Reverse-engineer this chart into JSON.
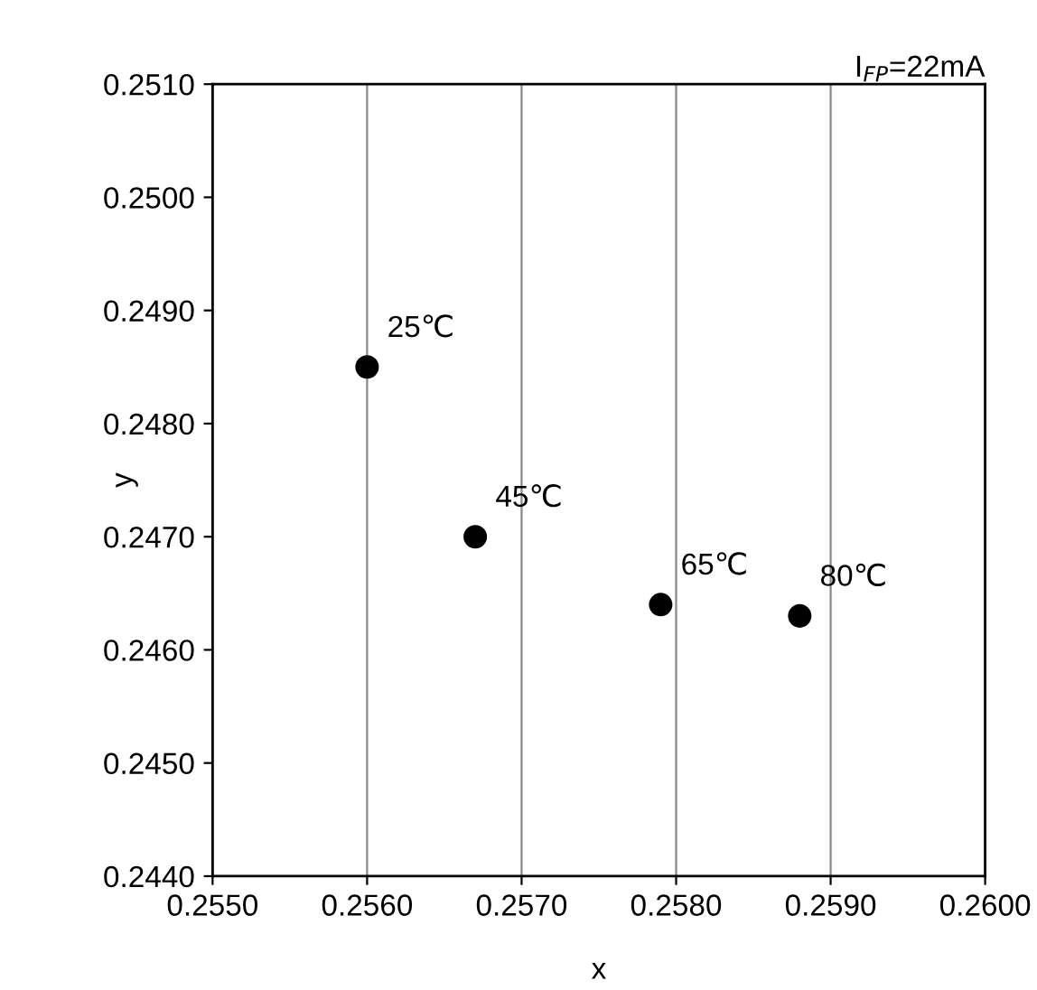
{
  "chart_data": {
    "type": "scatter",
    "title": "I$_{FP}$=22mA",
    "xlabel": "x",
    "ylabel": "y",
    "x": [
      0.256,
      0.2567,
      0.2579,
      0.2588
    ],
    "values": [
      0.2485,
      0.247,
      0.2464,
      0.2463
    ],
    "color": "#000000",
    "marker": "circle",
    "xlim": [
      0.255,
      0.26
    ],
    "xticks": [
      {
        "value": 0.255,
        "label": "0.2550"
      },
      {
        "value": 0.256,
        "label": "0.2560"
      },
      {
        "value": 0.257,
        "label": "0.2570"
      },
      {
        "value": 0.258,
        "label": "0.2580"
      },
      {
        "value": 0.259,
        "label": "0.2590"
      },
      {
        "value": 0.26,
        "label": "0.2600"
      }
    ],
    "ylim": [
      0.244,
      0.251
    ],
    "yticks": [
      {
        "value": 0.244,
        "label": "0.2440"
      },
      {
        "value": 0.245,
        "label": "0.2450"
      },
      {
        "value": 0.246,
        "label": "0.2460"
      },
      {
        "value": 0.247,
        "label": "0.2470"
      },
      {
        "value": 0.248,
        "label": "0.2480"
      },
      {
        "value": 0.249,
        "label": "0.2490"
      },
      {
        "value": 0.25,
        "label": "0.2500"
      },
      {
        "value": 0.251,
        "label": "0.2510"
      }
    ],
    "grid": "x",
    "legend": false,
    "annotations": [
      {
        "text": "25℃",
        "x": 0.256,
        "y": 0.2485
      },
      {
        "text": "45℃",
        "x": 0.2567,
        "y": 0.247
      },
      {
        "text": "65℃",
        "x": 0.2579,
        "y": 0.2464
      },
      {
        "text": "80℃",
        "x": 0.2588,
        "y": 0.2463
      }
    ]
  }
}
